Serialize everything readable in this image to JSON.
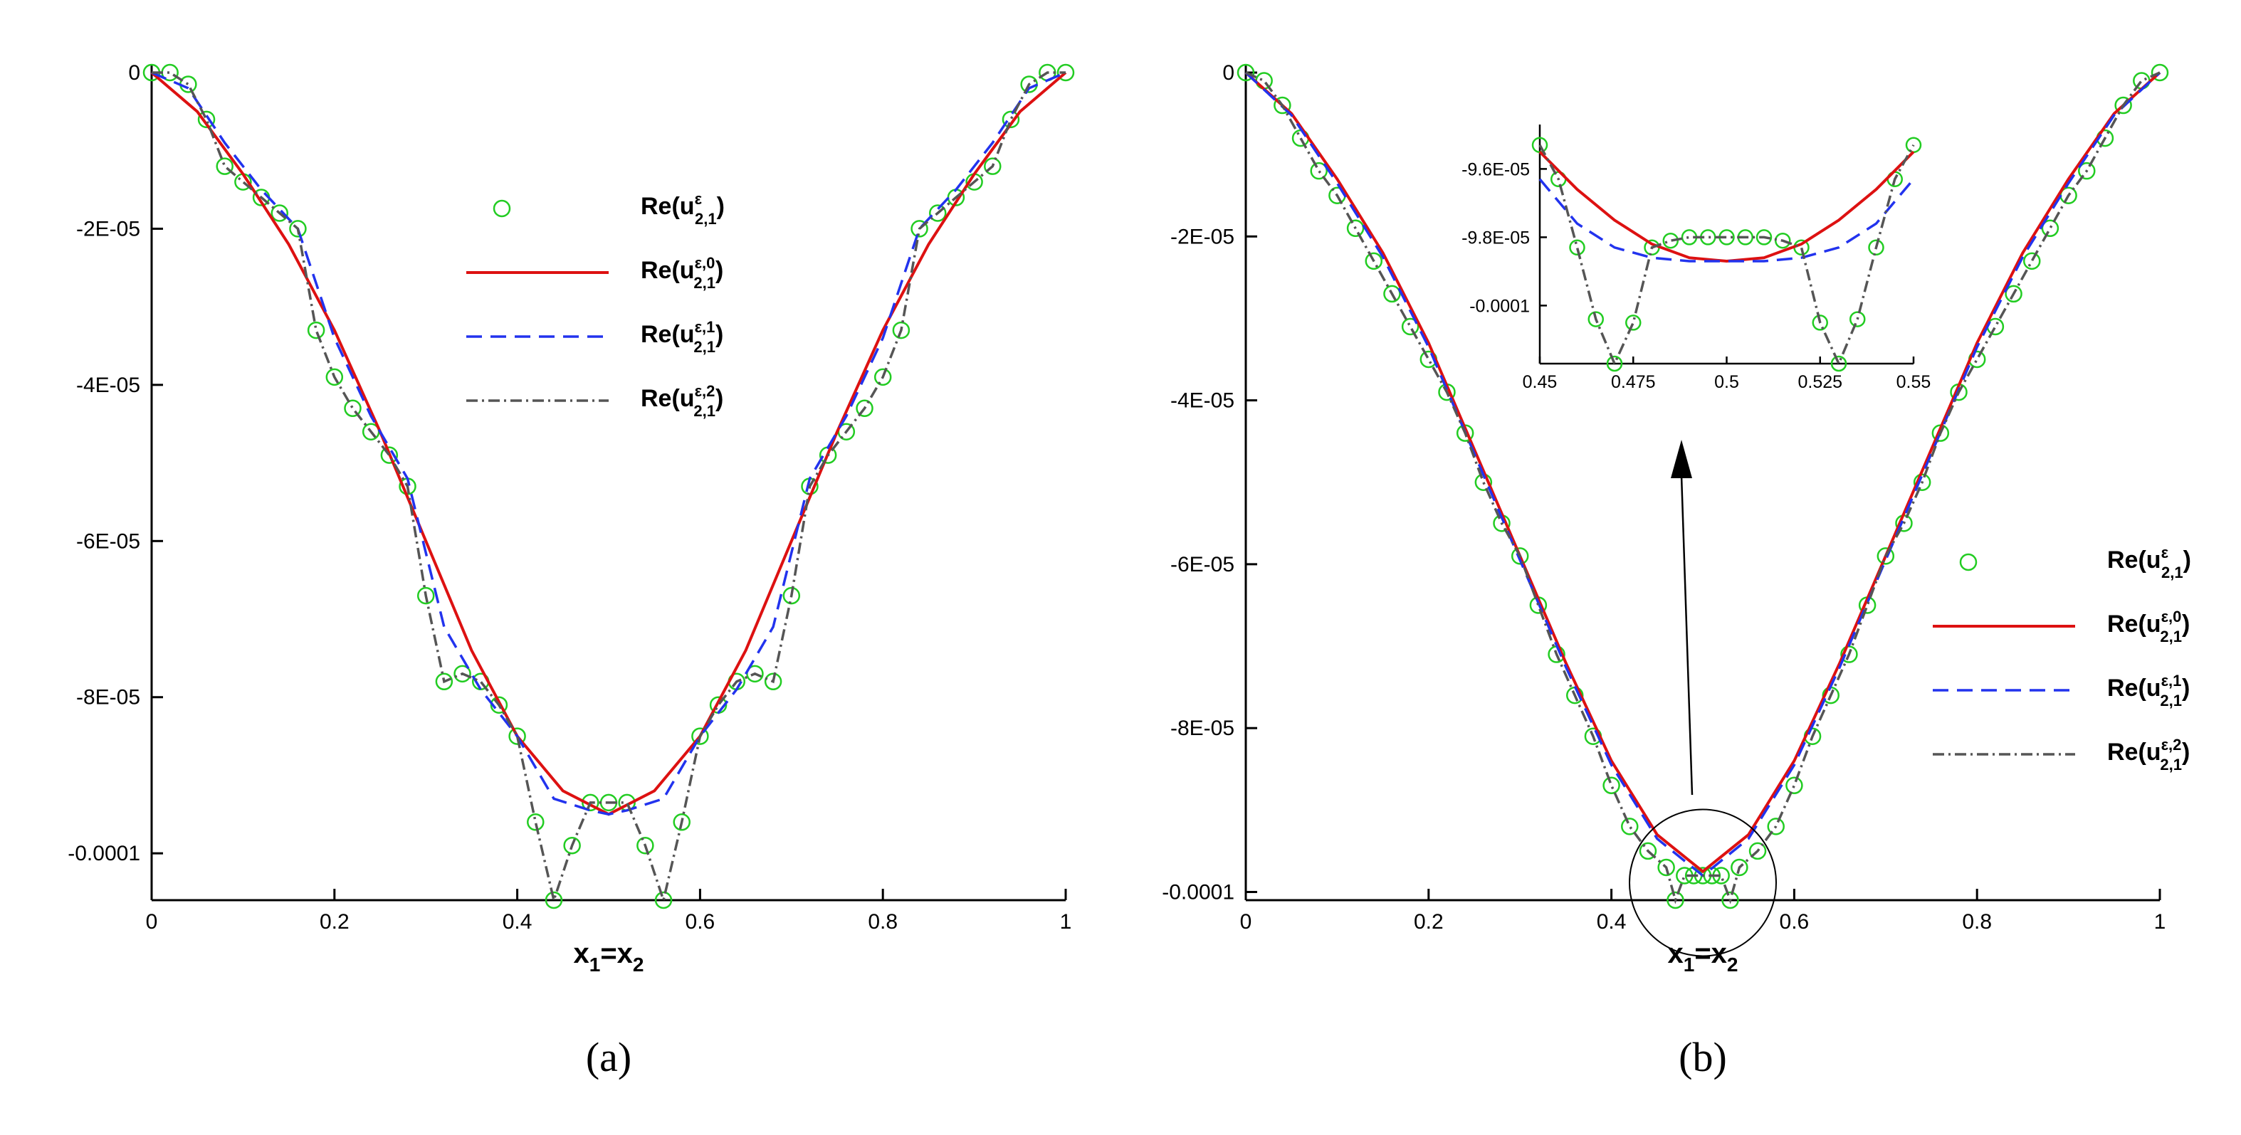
{
  "chart_data": [
    {
      "type": "line",
      "panel_label": "(a)",
      "xlabel": "x1=x2",
      "xlim": [
        0,
        1
      ],
      "ylim": [
        -0.000106,
        0
      ],
      "x_ticks": [
        0,
        0.2,
        0.4,
        0.6,
        0.8,
        1
      ],
      "x_tick_labels": [
        "0",
        "0.2",
        "0.4",
        "0.6",
        "0.8",
        "1"
      ],
      "y_ticks": [
        0,
        -2e-05,
        -4e-05,
        -6e-05,
        -8e-05,
        -0.0001
      ],
      "y_tick_labels": [
        "0",
        "-2E-05",
        "-4E-05",
        "-6E-05",
        "-8E-05",
        "-0.0001"
      ],
      "legend_position": "top-center",
      "series": [
        {
          "name": "Re(u^ε_2,1)",
          "label": "Re(u",
          "sub": "2,1",
          "sup": "ε",
          "style": "circles",
          "color": "#22cc22",
          "x": [
            0,
            0.02,
            0.04,
            0.06,
            0.08,
            0.1,
            0.12,
            0.14,
            0.16,
            0.18,
            0.2,
            0.22,
            0.24,
            0.26,
            0.28,
            0.3,
            0.32,
            0.34,
            0.36,
            0.38,
            0.4,
            0.42,
            0.44,
            0.46,
            0.48,
            0.5
          ],
          "values": [
            0,
            0,
            -1.5e-06,
            -6e-06,
            -1.2e-05,
            -1.4e-05,
            -1.6e-05,
            -1.8e-05,
            -2e-05,
            -3.3e-05,
            -3.9e-05,
            -4.3e-05,
            -4.6e-05,
            -4.9e-05,
            -5.3e-05,
            -6.7e-05,
            -7.8e-05,
            -7.7e-05,
            -7.8e-05,
            -8.1e-05,
            -8.5e-05,
            -9.6e-05,
            -0.000106,
            -9.9e-05,
            -9.35e-05,
            -9.35e-05
          ]
        },
        {
          "name": "Re(u^ε,0_2,1)",
          "label": "Re(u",
          "sub": "2,1",
          "sup": "ε,0",
          "style": "solid",
          "color": "#dd1111",
          "x": [
            0,
            0.05,
            0.1,
            0.15,
            0.2,
            0.25,
            0.3,
            0.35,
            0.4,
            0.45,
            0.5
          ],
          "values": [
            0,
            -5e-06,
            -1.3e-05,
            -2.2e-05,
            -3.3e-05,
            -4.6e-05,
            -6e-05,
            -7.4e-05,
            -8.5e-05,
            -9.2e-05,
            -9.5e-05
          ]
        },
        {
          "name": "Re(u^ε,1_2,1)",
          "label": "Re(u",
          "sub": "2,1",
          "sup": "ε,1",
          "style": "dashed",
          "color": "#2233ee",
          "x": [
            0,
            0.04,
            0.08,
            0.12,
            0.16,
            0.2,
            0.24,
            0.28,
            0.32,
            0.36,
            0.4,
            0.44,
            0.48,
            0.5
          ],
          "values": [
            0,
            -2e-06,
            -9e-06,
            -1.5e-05,
            -2e-05,
            -3.4e-05,
            -4.4e-05,
            -5.2e-05,
            -7.1e-05,
            -7.9e-05,
            -8.5e-05,
            -9.3e-05,
            -9.45e-05,
            -9.5e-05
          ]
        },
        {
          "name": "Re(u^ε,2_2,1)",
          "label": "Re(u",
          "sub": "2,1",
          "sup": "ε,2",
          "style": "dashdot",
          "color": "#555555",
          "x": [
            0,
            0.02,
            0.04,
            0.06,
            0.08,
            0.1,
            0.12,
            0.14,
            0.16,
            0.18,
            0.2,
            0.22,
            0.24,
            0.26,
            0.28,
            0.3,
            0.32,
            0.34,
            0.36,
            0.38,
            0.4,
            0.42,
            0.44,
            0.46,
            0.48,
            0.5
          ],
          "values": [
            0,
            0,
            -1.5e-06,
            -6e-06,
            -1.2e-05,
            -1.4e-05,
            -1.6e-05,
            -1.8e-05,
            -2e-05,
            -3.3e-05,
            -3.9e-05,
            -4.3e-05,
            -4.6e-05,
            -4.9e-05,
            -5.3e-05,
            -6.7e-05,
            -7.8e-05,
            -7.7e-05,
            -7.8e-05,
            -8.1e-05,
            -8.5e-05,
            -9.6e-05,
            -0.000106,
            -9.9e-05,
            -9.35e-05,
            -9.35e-05
          ]
        }
      ]
    },
    {
      "type": "line",
      "panel_label": "(b)",
      "xlabel": "x1=x2",
      "xlim": [
        0,
        1
      ],
      "ylim": [
        -0.000101,
        0
      ],
      "x_ticks": [
        0,
        0.2,
        0.4,
        0.6,
        0.8,
        1
      ],
      "x_tick_labels": [
        "0",
        "0.2",
        "0.4",
        "0.6",
        "0.8",
        "1"
      ],
      "y_ticks": [
        0,
        -2e-05,
        -4e-05,
        -6e-05,
        -8e-05,
        -0.0001
      ],
      "y_tick_labels": [
        "0",
        "-2E-05",
        "-4E-05",
        "-6E-05",
        "-8E-05",
        "-0.0001"
      ],
      "legend_position": "right",
      "series": [
        {
          "name": "Re(u^ε_2,1)",
          "label": "Re(u",
          "sub": "2,1",
          "sup": "ε",
          "style": "circles",
          "color": "#22cc22",
          "x": [
            0,
            0.02,
            0.04,
            0.06,
            0.08,
            0.1,
            0.12,
            0.14,
            0.16,
            0.18,
            0.2,
            0.22,
            0.24,
            0.26,
            0.28,
            0.3,
            0.32,
            0.34,
            0.36,
            0.38,
            0.4,
            0.42,
            0.44,
            0.46,
            0.47,
            0.48,
            0.49,
            0.5
          ],
          "values": [
            0,
            -1e-06,
            -4e-06,
            -8e-06,
            -1.2e-05,
            -1.5e-05,
            -1.9e-05,
            -2.3e-05,
            -2.7e-05,
            -3.1e-05,
            -3.5e-05,
            -3.9e-05,
            -4.4e-05,
            -5e-05,
            -5.5e-05,
            -5.9e-05,
            -6.5e-05,
            -7.1e-05,
            -7.6e-05,
            -8.1e-05,
            -8.7e-05,
            -9.2e-05,
            -9.5e-05,
            -9.7e-05,
            -0.000101,
            -9.8e-05,
            -9.8e-05,
            -9.8e-05
          ]
        },
        {
          "name": "Re(u^ε,0_2,1)",
          "label": "Re(u",
          "sub": "2,1",
          "sup": "ε,0",
          "style": "solid",
          "color": "#dd1111",
          "x": [
            0,
            0.05,
            0.1,
            0.15,
            0.2,
            0.25,
            0.3,
            0.35,
            0.4,
            0.45,
            0.5
          ],
          "values": [
            0,
            -5e-06,
            -1.3e-05,
            -2.2e-05,
            -3.3e-05,
            -4.6e-05,
            -5.9e-05,
            -7.2e-05,
            -8.4e-05,
            -9.3e-05,
            -9.75e-05
          ]
        },
        {
          "name": "Re(u^ε,1_2,1)",
          "label": "Re(u",
          "sub": "2,1",
          "sup": "ε,1",
          "style": "dashed",
          "color": "#2233ee",
          "x": [
            0,
            0.05,
            0.1,
            0.15,
            0.2,
            0.25,
            0.3,
            0.35,
            0.4,
            0.45,
            0.5
          ],
          "values": [
            0,
            -5.2e-06,
            -1.35e-05,
            -2.25e-05,
            -3.35e-05,
            -4.65e-05,
            -5.95e-05,
            -7.25e-05,
            -8.45e-05,
            -9.35e-05,
            -9.8e-05
          ]
        },
        {
          "name": "Re(u^ε,2_2,1)",
          "label": "Re(u",
          "sub": "2,1",
          "sup": "ε,2",
          "style": "dashdot",
          "color": "#555555",
          "x": [
            0,
            0.02,
            0.04,
            0.06,
            0.08,
            0.1,
            0.12,
            0.14,
            0.16,
            0.18,
            0.2,
            0.22,
            0.24,
            0.26,
            0.28,
            0.3,
            0.32,
            0.34,
            0.36,
            0.38,
            0.4,
            0.42,
            0.44,
            0.46,
            0.47,
            0.48,
            0.49,
            0.5
          ],
          "values": [
            0,
            -1e-06,
            -4e-06,
            -8e-06,
            -1.2e-05,
            -1.5e-05,
            -1.9e-05,
            -2.3e-05,
            -2.7e-05,
            -3.1e-05,
            -3.5e-05,
            -3.9e-05,
            -4.4e-05,
            -5e-05,
            -5.5e-05,
            -5.9e-05,
            -6.5e-05,
            -7.1e-05,
            -7.6e-05,
            -8.1e-05,
            -8.7e-05,
            -9.2e-05,
            -9.5e-05,
            -9.7e-05,
            -0.000101,
            -9.8e-05,
            -9.8e-05,
            -9.8e-05
          ]
        }
      ],
      "inset": {
        "xlim": [
          0.45,
          0.55
        ],
        "ylim": [
          -0.0001017,
          -9.47e-05
        ],
        "x_ticks": [
          0.45,
          0.475,
          0.5,
          0.525,
          0.55
        ],
        "x_tick_labels": [
          "0.45",
          "0.475",
          "0.5",
          "0.525",
          "0.55"
        ],
        "y_ticks": [
          -9.6e-05,
          -9.8e-05,
          -0.0001
        ],
        "y_tick_labels": [
          "-9.6E-05",
          "-9.8E-05",
          "-0.0001"
        ],
        "series": [
          {
            "name": "Re(u^ε_2,1)",
            "style": "circles",
            "color": "#22cc22",
            "x": [
              0.45,
              0.455,
              0.46,
              0.465,
              0.47,
              0.475,
              0.48,
              0.485,
              0.49,
              0.495,
              0.5
            ],
            "values": [
              -9.53e-05,
              -9.63e-05,
              -9.83e-05,
              -0.0001004,
              -0.0001017,
              -0.0001005,
              -9.83e-05,
              -9.81e-05,
              -9.8e-05,
              -9.8e-05,
              -9.8e-05
            ]
          },
          {
            "name": "Re(u^ε,0_2,1)",
            "style": "solid",
            "color": "#dd1111",
            "x": [
              0.45,
              0.46,
              0.47,
              0.48,
              0.49,
              0.5
            ],
            "values": [
              -9.55e-05,
              -9.66e-05,
              -9.75e-05,
              -9.82e-05,
              -9.86e-05,
              -9.87e-05
            ]
          },
          {
            "name": "Re(u^ε,1_2,1)",
            "style": "dashed",
            "color": "#2233ee",
            "x": [
              0.45,
              0.46,
              0.47,
              0.48,
              0.49,
              0.5
            ],
            "values": [
              -9.63e-05,
              -9.76e-05,
              -9.83e-05,
              -9.86e-05,
              -9.87e-05,
              -9.87e-05
            ]
          },
          {
            "name": "Re(u^ε,2_2,1)",
            "style": "dashdot",
            "color": "#555555",
            "x": [
              0.45,
              0.455,
              0.46,
              0.465,
              0.47,
              0.475,
              0.48,
              0.485,
              0.49,
              0.495,
              0.5
            ],
            "values": [
              -9.53e-05,
              -9.63e-05,
              -9.83e-05,
              -0.0001004,
              -0.0001017,
              -0.0001005,
              -9.83e-05,
              -9.81e-05,
              -9.8e-05,
              -9.8e-05,
              -9.8e-05
            ]
          }
        ]
      }
    }
  ]
}
